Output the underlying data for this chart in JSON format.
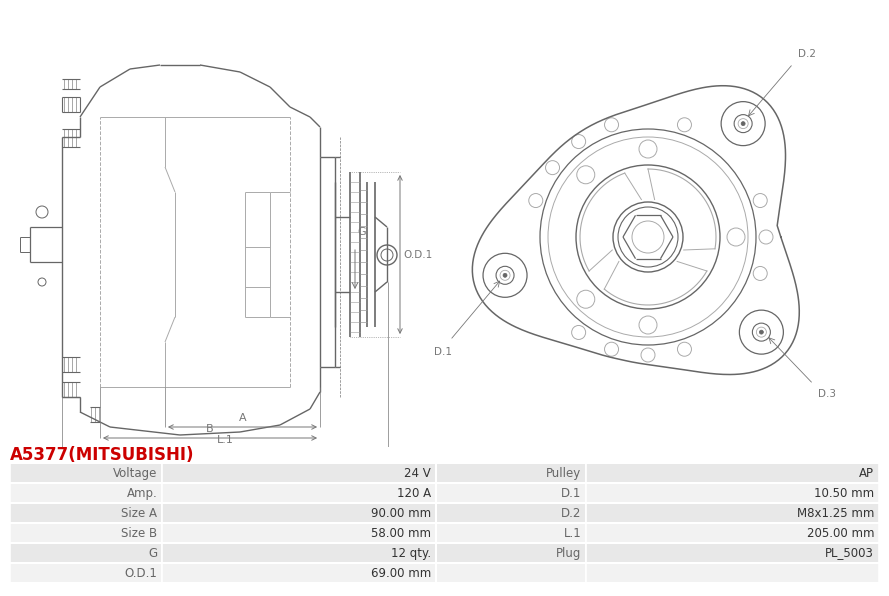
{
  "title": "A5377(MITSUBISHI)",
  "title_color": "#cc0000",
  "bg_color": "#ffffff",
  "table_data": [
    [
      "Voltage",
      "24 V",
      "Pulley",
      "AP"
    ],
    [
      "Amp.",
      "120 A",
      "D.1",
      "10.50 mm"
    ],
    [
      "Size A",
      "90.00 mm",
      "D.2",
      "M8x1.25 mm"
    ],
    [
      "Size B",
      "58.00 mm",
      "L.1",
      "205.00 mm"
    ],
    [
      "G",
      "12 qty.",
      "Plug",
      "PL_5003"
    ],
    [
      "O.D.1",
      "69.00 mm",
      "",
      ""
    ]
  ],
  "table_row_bg1": "#e8e8e8",
  "table_row_bg2": "#f2f2f2",
  "line_color": "#aaaaaa",
  "dark_line": "#666666",
  "dim_color": "#777777",
  "label_color": "#888888"
}
